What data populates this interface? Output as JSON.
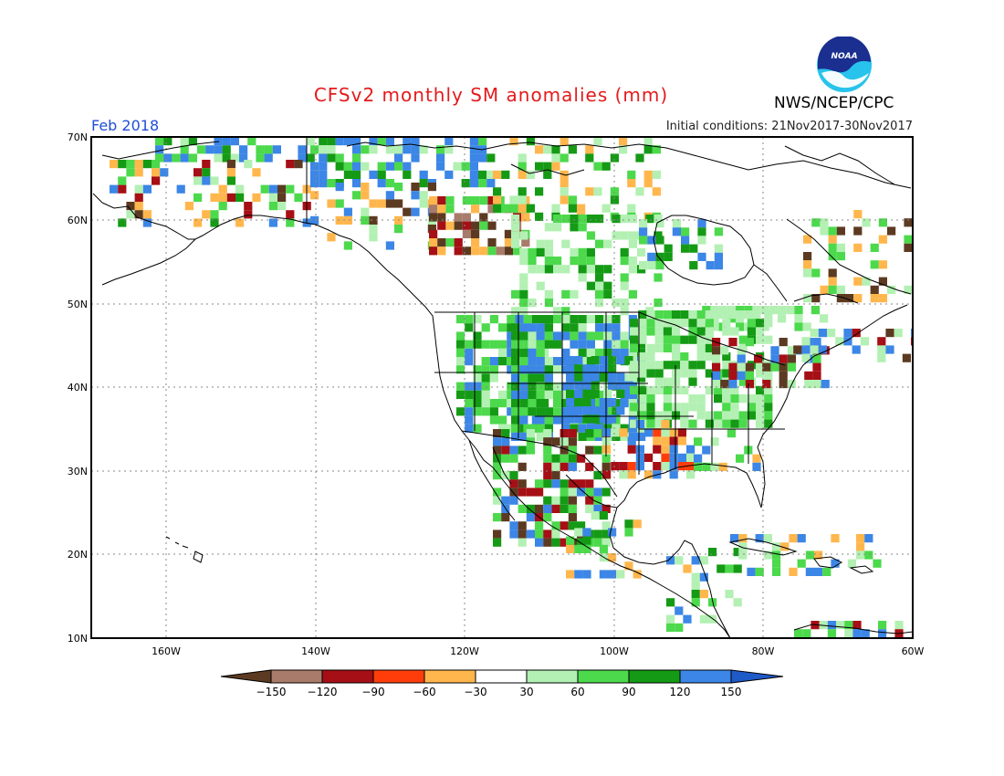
{
  "header": {
    "title": "CFSv2 monthly SM anomalies (mm)",
    "valid_month": "Feb 2018",
    "initial_conditions": "Initial conditions: 21Nov2017-30Nov2017",
    "organization": "NWS/NCEP/CPC",
    "logo_text": "NOAA"
  },
  "map": {
    "lon_range": [
      -170,
      -60
    ],
    "lat_range": [
      10,
      70
    ],
    "lat_labels": [
      "70N",
      "60N",
      "50N",
      "40N",
      "30N",
      "20N",
      "10N"
    ],
    "lon_labels": [
      "160W",
      "140W",
      "120W",
      "100W",
      "80W",
      "60W"
    ],
    "gridlines": "dotted"
  },
  "legend": {
    "labels": [
      "−150",
      "−120",
      "−90",
      "−60",
      "−30",
      "30",
      "60",
      "90",
      "120",
      "150"
    ],
    "colors": [
      "#5c3a21",
      "#a87b6a",
      "#a50f15",
      "#ff3d0a",
      "#ffb74d",
      "#ffffff",
      "#b3f0b3",
      "#4cd94c",
      "#159a15",
      "#3b86e6",
      "#1e5ac8"
    ]
  },
  "palette": {
    "title": "#e41a1c",
    "valid": "#1f4fd6",
    "coast": "#000000"
  }
}
